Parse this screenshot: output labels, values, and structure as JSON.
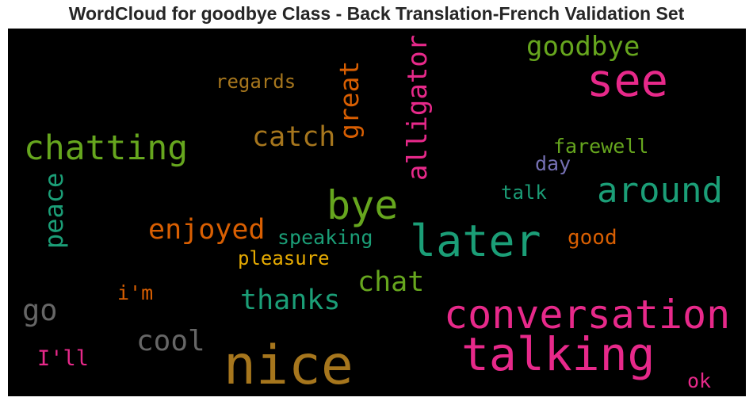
{
  "title": "WordCloud for goodbye Class - Back Translation-French Validation Set",
  "words": {
    "see": {
      "text": "see",
      "color": "#e7298a"
    },
    "goodbye": {
      "text": "goodbye",
      "color": "#66a61e"
    },
    "regards": {
      "text": "regards",
      "color": "#a6761d"
    },
    "alligator": {
      "text": "alligator",
      "color": "#e7298a"
    },
    "great": {
      "text": "great",
      "color": "#d95f02"
    },
    "catch": {
      "text": "catch",
      "color": "#a6761d"
    },
    "chatting": {
      "text": "chatting",
      "color": "#66a61e"
    },
    "farewell": {
      "text": "farewell",
      "color": "#66a61e"
    },
    "day": {
      "text": "day",
      "color": "#7570b3"
    },
    "peace": {
      "text": "peace",
      "color": "#1b9e77"
    },
    "around": {
      "text": "around",
      "color": "#1b9e77"
    },
    "talk": {
      "text": "talk",
      "color": "#1b9e77"
    },
    "bye": {
      "text": "bye",
      "color": "#66a61e"
    },
    "enjoyed": {
      "text": "enjoyed",
      "color": "#d95f02"
    },
    "speaking": {
      "text": "speaking",
      "color": "#1b9e77"
    },
    "later": {
      "text": "later",
      "color": "#1b9e77"
    },
    "good": {
      "text": "good",
      "color": "#d95f02"
    },
    "pleasure": {
      "text": "pleasure",
      "color": "#e6ab02"
    },
    "chat": {
      "text": "chat",
      "color": "#66a61e"
    },
    "im": {
      "text": "i'm",
      "color": "#d95f02"
    },
    "thanks": {
      "text": "thanks",
      "color": "#1b9e77"
    },
    "go": {
      "text": "go",
      "color": "#666666"
    },
    "conversation": {
      "text": "conversation",
      "color": "#e7298a"
    },
    "cool": {
      "text": "cool",
      "color": "#666666"
    },
    "talking": {
      "text": "talking",
      "color": "#e7298a"
    },
    "ill": {
      "text": "I'll",
      "color": "#e7298a"
    },
    "nice": {
      "text": "nice",
      "color": "#a6761d"
    },
    "ok": {
      "text": "ok",
      "color": "#e7298a"
    }
  }
}
